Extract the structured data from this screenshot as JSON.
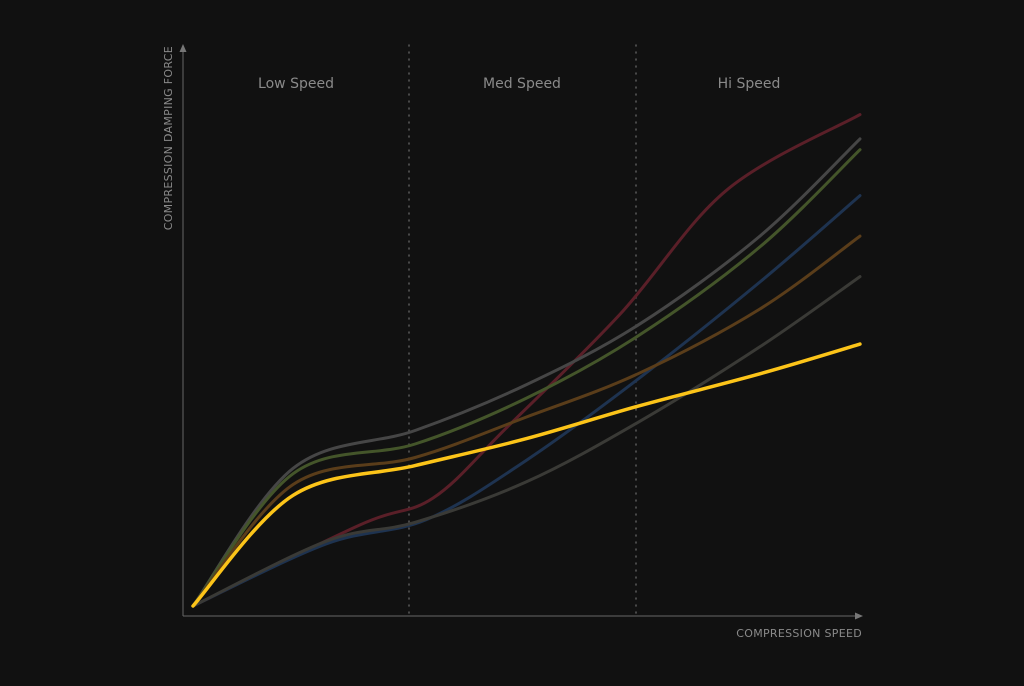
{
  "chart_data": {
    "type": "line",
    "xlabel": "COMPRESSION SPEED",
    "ylabel": "COMPRESSION DAMPING FORCE",
    "xlim": [
      0,
      1
    ],
    "ylim": [
      0,
      1
    ],
    "grid": false,
    "legend": "none",
    "zones": [
      {
        "label": "Low Speed",
        "from": 0,
        "to": 0.333
      },
      {
        "label": "Med Speed",
        "from": 0.333,
        "to": 0.667
      },
      {
        "label": "Hi Speed",
        "from": 0.667,
        "to": 1
      }
    ],
    "series": [
      {
        "color": "#5a1f28",
        "x": [
          0,
          0.25,
          0.36,
          0.47,
          0.64,
          0.8,
          1.0
        ],
        "y": [
          0,
          0.15,
          0.2,
          0.33,
          0.54,
          0.77,
          0.91
        ]
      },
      {
        "color": "#464646",
        "x": [
          0,
          0.15,
          0.333,
          0.5,
          0.667,
          0.85,
          1.0
        ],
        "y": [
          0,
          0.255,
          0.325,
          0.41,
          0.52,
          0.685,
          0.865
        ]
      },
      {
        "color": "#44552a",
        "x": [
          0,
          0.15,
          0.333,
          0.5,
          0.667,
          0.85,
          1.0
        ],
        "y": [
          0,
          0.245,
          0.3,
          0.385,
          0.5,
          0.665,
          0.845
        ]
      },
      {
        "color": "#1e3350",
        "x": [
          0,
          0.2,
          0.35,
          0.5,
          0.667,
          0.85,
          1.0
        ],
        "y": [
          0,
          0.115,
          0.16,
          0.27,
          0.42,
          0.6,
          0.76
        ]
      },
      {
        "color": "#5a3d1a",
        "x": [
          0,
          0.15,
          0.333,
          0.5,
          0.667,
          0.85,
          1.0
        ],
        "y": [
          0,
          0.225,
          0.275,
          0.35,
          0.43,
          0.55,
          0.685
        ]
      },
      {
        "color": "#3a3a36",
        "x": [
          0,
          0.2,
          0.333,
          0.5,
          0.667,
          0.85,
          1.0
        ],
        "y": [
          0,
          0.12,
          0.155,
          0.23,
          0.34,
          0.48,
          0.61
        ]
      },
      {
        "color": "#fcc419",
        "x": [
          0,
          0.15,
          0.333,
          0.5,
          0.667,
          0.85,
          1.0
        ],
        "y": [
          0,
          0.205,
          0.26,
          0.31,
          0.37,
          0.43,
          0.485
        ]
      }
    ]
  }
}
